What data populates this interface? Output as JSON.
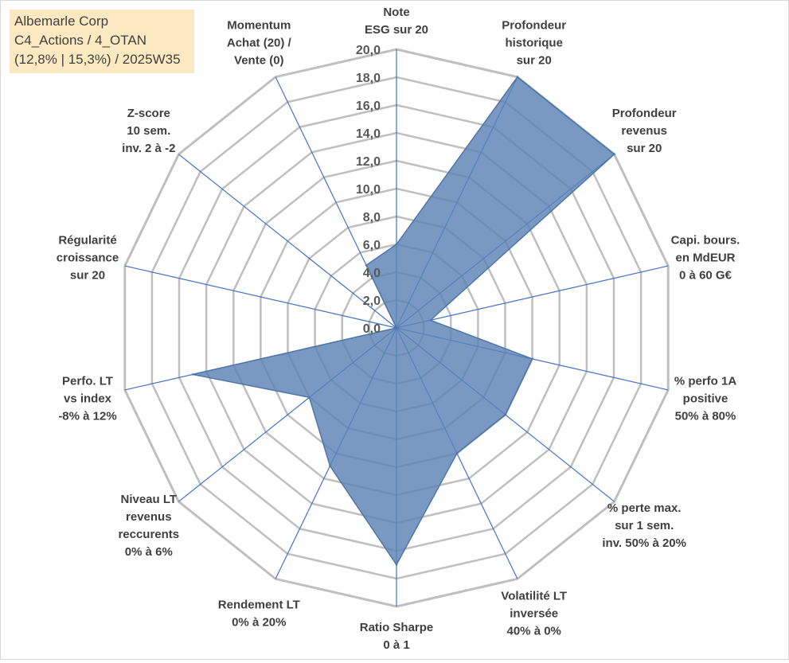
{
  "info_box": {
    "line1": "Albemarle Corp",
    "line2": "C4_Actions / 4_OTAN",
    "line3": "(12,8% | 15,3%) / 2025W35"
  },
  "colors": {
    "grid": "#bfbfbf",
    "spoke": "#4472c4",
    "fill": "#5b83b5",
    "fill_stroke": "#4f76a8",
    "info_box_bg": "#fce9c2"
  },
  "chart_data": {
    "type": "radar",
    "range": [
      0,
      20
    ],
    "tick_step": 2,
    "tick_labels": [
      "0,0",
      "2,0",
      "4,0",
      "6,0",
      "8,0",
      "10,0",
      "12,0",
      "14,0",
      "16,0",
      "18,0",
      "20,0"
    ],
    "axes": [
      {
        "label": [
          "Note",
          "ESG sur 20"
        ],
        "value": 6.0
      },
      {
        "label": [
          "Profondeur",
          "historique",
          "sur 20"
        ],
        "value": 20.0
      },
      {
        "label": [
          "Profondeur",
          "revenus",
          "sur 20"
        ],
        "value": 20.0
      },
      {
        "label": [
          "Capi. bours.",
          "en MdEUR",
          "0 à 60 G€"
        ],
        "value": 2.5
      },
      {
        "label": [
          "% perfo 1A",
          "positive",
          "50% à 80%"
        ],
        "value": 10.0
      },
      {
        "label": [
          "% perte max.",
          "sur 1 sem.",
          "inv. 50% à 20%"
        ],
        "value": 10.0
      },
      {
        "label": [
          "Volatilité LT",
          "inversée",
          "40% à 0%"
        ],
        "value": 10.0
      },
      {
        "label": [
          "Ratio Sharpe",
          "0 à 1"
        ],
        "value": 17.0
      },
      {
        "label": [
          "Rendement LT",
          "0% à 20%"
        ],
        "value": 11.0
      },
      {
        "label": [
          "Niveau LT",
          "revenus",
          "reccurents",
          "0% à 6%"
        ],
        "value": 8.0
      },
      {
        "label": [
          "Perfo. LT",
          "vs index",
          "-8% à 12%"
        ],
        "value": 15.0
      },
      {
        "label": [
          "Régularité",
          "croissance",
          "sur 20"
        ],
        "value": 0.0
      },
      {
        "label": [
          "Z-score",
          "10 sem.",
          "inv. 2 à -2"
        ],
        "value": 0.0
      },
      {
        "label": [
          "Momentum",
          "Achat (20) /",
          "Vente (0)"
        ],
        "value": 5.0
      }
    ]
  }
}
